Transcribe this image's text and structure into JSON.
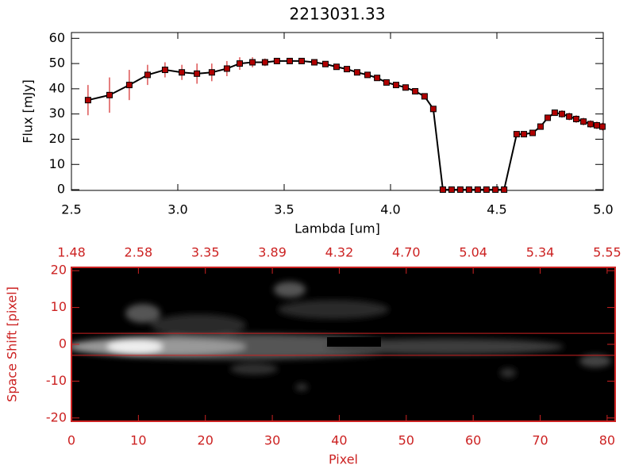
{
  "chart_data": [
    {
      "type": "line",
      "title": "2213031.33",
      "x_label": "Lambda [um]",
      "y_label": "Flux [mJy]",
      "x": [
        2.578,
        2.679,
        2.772,
        2.858,
        2.94,
        3.019,
        3.09,
        3.16,
        3.231,
        3.291,
        3.351,
        3.41,
        3.466,
        3.526,
        3.582,
        3.642,
        3.694,
        3.746,
        3.795,
        3.843,
        3.892,
        3.937,
        3.981,
        4.026,
        4.071,
        4.116,
        4.16,
        4.201,
        4.246,
        4.287,
        4.328,
        4.369,
        4.41,
        4.451,
        4.493,
        4.534,
        4.593,
        4.627,
        4.668,
        4.705,
        4.739,
        4.772,
        4.806,
        4.84,
        4.873,
        4.907,
        4.94,
        4.97,
        4.996
      ],
      "values": [
        35.5,
        37.5,
        41.5,
        45.5,
        47.5,
        46.5,
        46,
        46.5,
        48,
        50,
        50.5,
        50.5,
        51,
        51,
        51,
        50.5,
        49.8,
        48.7,
        47.8,
        46.5,
        45.5,
        44.3,
        42.5,
        41.5,
        40.5,
        39,
        37,
        32,
        0,
        0,
        0,
        0,
        0,
        0,
        0,
        0,
        22,
        22,
        22.5,
        25,
        28.5,
        30.5,
        30,
        29,
        28,
        27,
        26,
        25.5,
        25
      ],
      "errors": [
        6,
        7,
        6,
        4,
        3,
        3,
        4,
        3.5,
        3,
        2.5,
        2,
        1.5,
        1,
        1,
        0.8,
        0.7,
        0.6,
        0.5,
        0.5,
        0.5,
        0.5,
        0.5,
        0.5,
        0.5,
        0.5,
        0.5,
        0.5,
        0.5,
        0,
        0,
        0,
        0,
        0,
        0,
        0,
        0,
        0.8,
        0.8,
        0.8,
        1,
        1,
        1.2,
        1.5,
        1.5,
        1.5,
        1.5,
        1.5,
        1.5,
        1.5
      ],
      "color": "#000000",
      "marker_color": "#b00000",
      "error_color": "#cc0000",
      "xlim": [
        2.5,
        5.0
      ],
      "ylim": [
        -0.3,
        62.3
      ],
      "xticks": [
        2.5,
        {
          "value": 3,
          "label": "3.0"
        },
        3.5,
        {
          "value": 4,
          "label": "4.0"
        },
        4.5,
        {
          "value": 5,
          "label": "5.0"
        }
      ],
      "yticks": [
        0,
        10,
        20,
        30,
        40,
        50,
        60
      ]
    },
    {
      "type": "image",
      "x_label": "Pixel",
      "y_label": "Space Shift [pixel]",
      "color": "#cc2222",
      "xlim": [
        0,
        81.2
      ],
      "ylim": [
        -20.9,
        20.9
      ],
      "xticks": [
        0,
        10,
        20,
        30,
        40,
        50,
        60,
        70,
        80
      ],
      "yticks": [
        -20,
        -10,
        0,
        10,
        20
      ],
      "x2ticks": [
        {
          "value": 0,
          "label": "1.48"
        },
        {
          "value": 10,
          "label": "2.58"
        },
        {
          "value": 20,
          "label": "3.35"
        },
        {
          "value": 30,
          "label": "3.89"
        },
        {
          "value": 40,
          "label": "4.32"
        },
        {
          "value": 50,
          "label": "4.70"
        },
        {
          "value": 60,
          "label": "5.04"
        },
        {
          "value": 70,
          "label": "5.34"
        },
        {
          "value": 80,
          "label": "5.55"
        }
      ],
      "hlines": [
        3,
        -3
      ]
    }
  ]
}
